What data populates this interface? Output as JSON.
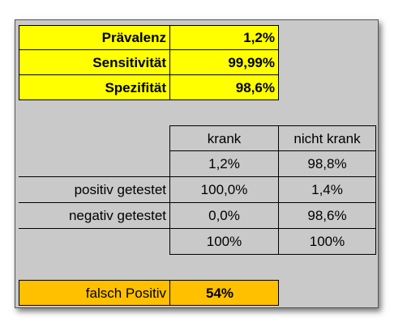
{
  "params": {
    "rows": [
      {
        "label": "Prävalenz",
        "value": "1,2%"
      },
      {
        "label": "Sensitivität",
        "value": "99,99%"
      },
      {
        "label": "Spezifität",
        "value": "98,6%"
      }
    ]
  },
  "table": {
    "headers": [
      "krank",
      "nicht krank"
    ],
    "share_row": [
      "1,2%",
      "98,8%"
    ],
    "rows": [
      {
        "label": "positiv getestet",
        "values": [
          "100,0%",
          "1,4%"
        ]
      },
      {
        "label": "negativ getestet",
        "values": [
          "0,0%",
          "98,6%"
        ]
      }
    ],
    "totals": [
      "100%",
      "100%"
    ]
  },
  "result": {
    "label": "falsch Positiv",
    "value": "54%"
  },
  "colors": {
    "yellow": "#ffff00",
    "orange": "#ffc000",
    "background": "#c9c9c9"
  }
}
